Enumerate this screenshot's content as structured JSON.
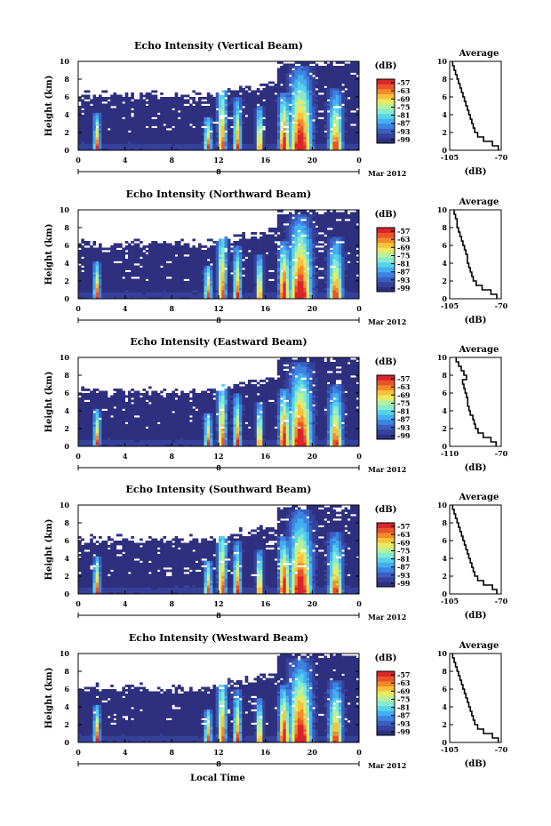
{
  "colors": {
    "background": "#ffffff",
    "colormap": [
      "#2e2f7e",
      "#35419a",
      "#3a5ec0",
      "#3d83e0",
      "#46aef0",
      "#57d3e8",
      "#87ead0",
      "#b9f29a",
      "#e9e962",
      "#f8c23c",
      "#f48a2a",
      "#e9542a",
      "#d9262a"
    ]
  },
  "figure": {
    "xlabel": "Local Time",
    "date_label": "Mar 2012"
  },
  "chart_data": [
    {
      "type": "heatmap",
      "title": "Echo Intensity (Vertical Beam)",
      "ylabel": "Height (km)",
      "xlabel": "Local Time",
      "x_ticks": [
        "0",
        "4",
        "8",
        "12",
        "16",
        "20",
        "0"
      ],
      "day_marker": "8",
      "xlim": [
        0,
        24
      ],
      "y_ticks": [
        "0",
        "2",
        "4",
        "6",
        "8",
        "10"
      ],
      "ylim": [
        0,
        10
      ],
      "colorbar": {
        "label": "(dB)",
        "ticks": [
          "-57",
          "-63",
          "-69",
          "-75",
          "-81",
          "-87",
          "-93",
          "-99"
        ]
      },
      "profile": {
        "title": "Average",
        "xlabel": "(dB)",
        "x_ticks": [
          "-105",
          "-70"
        ],
        "xlim": [
          -105,
          -70
        ],
        "ylim": [
          0,
          10
        ],
        "height": [
          0,
          0.5,
          1,
          1.5,
          2,
          2.5,
          3,
          3.5,
          4,
          4.5,
          5,
          5.5,
          6,
          6.5,
          7,
          7.5,
          8,
          8.5,
          9,
          9.5
        ],
        "value": [
          -72,
          -76,
          -82,
          -86,
          -88,
          -89,
          -90,
          -91,
          -92,
          -93,
          -94,
          -95,
          -96,
          -97,
          -98,
          -99,
          -100,
          -101,
          -102,
          -103
        ]
      }
    },
    {
      "type": "heatmap",
      "title": "Echo Intensity (Northward Beam)",
      "ylabel": "Height (km)",
      "xlabel": "Local Time",
      "x_ticks": [
        "0",
        "4",
        "8",
        "12",
        "16",
        "20",
        "0"
      ],
      "day_marker": "8",
      "xlim": [
        0,
        24
      ],
      "y_ticks": [
        "0",
        "2",
        "4",
        "6",
        "8",
        "10"
      ],
      "ylim": [
        0,
        10
      ],
      "colorbar": {
        "label": "(dB)",
        "ticks": [
          "-57",
          "-63",
          "-69",
          "-75",
          "-81",
          "-87",
          "-93",
          "-99"
        ]
      },
      "profile": {
        "title": "Average",
        "xlabel": "(dB)",
        "x_ticks": [
          "-105",
          "-70"
        ],
        "xlim": [
          -105,
          -70
        ],
        "ylim": [
          0,
          10
        ],
        "height": [
          0,
          0.5,
          1,
          1.5,
          2,
          2.5,
          3,
          3.5,
          4,
          4.5,
          5,
          5.5,
          6,
          6.5,
          7,
          7.5,
          8,
          8.5,
          9,
          9.5
        ],
        "value": [
          -73,
          -77,
          -83,
          -87,
          -89,
          -90,
          -91,
          -92,
          -93,
          -93,
          -94,
          -95,
          -96,
          -97,
          -98,
          -99,
          -100,
          -100,
          -101,
          -102
        ]
      }
    },
    {
      "type": "heatmap",
      "title": "Echo Intensity (Eastward Beam)",
      "ylabel": "Height (km)",
      "xlabel": "Local Time",
      "x_ticks": [
        "0",
        "4",
        "8",
        "12",
        "16",
        "20",
        "0"
      ],
      "day_marker": "8",
      "xlim": [
        0,
        24
      ],
      "y_ticks": [
        "0",
        "2",
        "4",
        "6",
        "8",
        "10"
      ],
      "ylim": [
        0,
        10
      ],
      "colorbar": {
        "label": "(dB)",
        "ticks": [
          "-57",
          "-63",
          "-69",
          "-75",
          "-81",
          "-87",
          "-93",
          "-99"
        ]
      },
      "profile": {
        "title": "Average",
        "xlabel": "(dB)",
        "x_ticks": [
          "-110",
          "-70"
        ],
        "xlim": [
          -110,
          -70
        ],
        "ylim": [
          0,
          10
        ],
        "height": [
          0,
          0.5,
          1,
          1.5,
          2,
          2.5,
          3,
          3.5,
          4,
          4.5,
          5,
          5.5,
          6,
          6.5,
          7,
          7.5,
          8,
          8.5,
          9,
          9.5
        ],
        "value": [
          -74,
          -78,
          -84,
          -88,
          -90,
          -91,
          -92,
          -94,
          -95,
          -96,
          -96,
          -97,
          -98,
          -99,
          -100,
          -97,
          -99,
          -101,
          -103,
          -105
        ]
      }
    },
    {
      "type": "heatmap",
      "title": "Echo Intensity (Southward Beam)",
      "ylabel": "Height (km)",
      "xlabel": "Local Time",
      "x_ticks": [
        "0",
        "4",
        "8",
        "12",
        "16",
        "20",
        "0"
      ],
      "day_marker": "8",
      "xlim": [
        0,
        24
      ],
      "y_ticks": [
        "0",
        "2",
        "4",
        "6",
        "8",
        "10"
      ],
      "ylim": [
        0,
        10
      ],
      "colorbar": {
        "label": "(dB)",
        "ticks": [
          "-57",
          "-63",
          "-69",
          "-75",
          "-81",
          "-87",
          "-93",
          "-99"
        ]
      },
      "profile": {
        "title": "Average",
        "xlabel": "(dB)",
        "x_ticks": [
          "-105",
          "-70"
        ],
        "xlim": [
          -105,
          -70
        ],
        "ylim": [
          0,
          10
        ],
        "height": [
          0,
          0.5,
          1,
          1.5,
          2,
          2.5,
          3,
          3.5,
          4,
          4.5,
          5,
          5.5,
          6,
          6.5,
          7,
          7.5,
          8,
          8.5,
          9,
          9.5
        ],
        "value": [
          -73,
          -76,
          -82,
          -86,
          -88,
          -89,
          -90,
          -91,
          -92,
          -93,
          -94,
          -95,
          -96,
          -97,
          -98,
          -99,
          -100,
          -101,
          -102,
          -103
        ]
      }
    },
    {
      "type": "heatmap",
      "title": "Echo Intensity (Westward Beam)",
      "ylabel": "Height (km)",
      "xlabel": "Local Time",
      "x_ticks": [
        "0",
        "4",
        "8",
        "12",
        "16",
        "20",
        "0"
      ],
      "day_marker": "8",
      "xlim": [
        0,
        24
      ],
      "y_ticks": [
        "0",
        "2",
        "4",
        "6",
        "8",
        "10"
      ],
      "ylim": [
        0,
        10
      ],
      "colorbar": {
        "label": "(dB)",
        "ticks": [
          "-57",
          "-63",
          "-69",
          "-75",
          "-81",
          "-87",
          "-93",
          "-99"
        ]
      },
      "profile": {
        "title": "Average",
        "xlabel": "(dB)",
        "x_ticks": [
          "-105",
          "-70"
        ],
        "xlim": [
          -105,
          -70
        ],
        "ylim": [
          0,
          10
        ],
        "height": [
          0,
          0.5,
          1,
          1.5,
          2,
          2.5,
          3,
          3.5,
          4,
          4.5,
          5,
          5.5,
          6,
          6.5,
          7,
          7.5,
          8,
          8.5,
          9,
          9.5
        ],
        "value": [
          -72,
          -76,
          -82,
          -86,
          -88,
          -89,
          -90,
          -91,
          -92,
          -93,
          -94,
          -95,
          -96,
          -97,
          -98,
          -99,
          -100,
          -101,
          -102,
          -103
        ]
      }
    }
  ]
}
